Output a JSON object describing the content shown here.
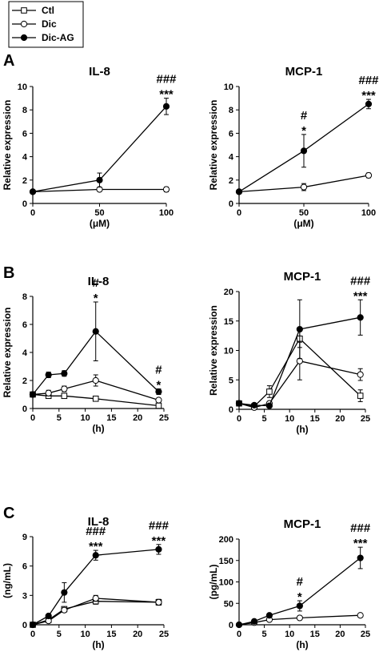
{
  "legend": {
    "items": [
      {
        "label": "Ctl",
        "marker": "open-square"
      },
      {
        "label": "Dic",
        "marker": "open-circle"
      },
      {
        "label": "Dic-AG",
        "marker": "filled-circle"
      }
    ]
  },
  "panel_labels": [
    "A",
    "B",
    "C"
  ],
  "chart_data": [
    {
      "type": "line",
      "panel": "A",
      "title": "IL-8",
      "xlabel": "(μM)",
      "ylabel": "Relative expression",
      "xlim": [
        0,
        100
      ],
      "ylim": [
        0,
        10
      ],
      "xticks": [
        0,
        50,
        100
      ],
      "yticks": [
        0,
        2,
        4,
        6,
        8,
        10
      ],
      "series": [
        {
          "name": "Dic",
          "marker": "open-circle",
          "x": [
            0,
            50,
            100
          ],
          "y": [
            1.0,
            1.2,
            1.2
          ],
          "err": [
            0,
            0.15,
            0.2
          ]
        },
        {
          "name": "Dic-AG",
          "marker": "filled-circle",
          "x": [
            0,
            50,
            100
          ],
          "y": [
            1.0,
            2.0,
            8.3
          ],
          "err": [
            0,
            0.6,
            0.7
          ]
        }
      ],
      "annotations": [
        {
          "x": 100,
          "lines": [
            "###",
            "***"
          ]
        }
      ]
    },
    {
      "type": "line",
      "panel": "A",
      "title": "MCP-1",
      "xlabel": "(μM)",
      "ylabel": "Relative expression",
      "xlim": [
        0,
        100
      ],
      "ylim": [
        0,
        10
      ],
      "xticks": [
        0,
        50,
        100
      ],
      "yticks": [
        0,
        2,
        4,
        6,
        8,
        10
      ],
      "series": [
        {
          "name": "Dic",
          "marker": "open-circle",
          "x": [
            0,
            50,
            100
          ],
          "y": [
            1.0,
            1.4,
            2.4
          ],
          "err": [
            0,
            0.3,
            0.2
          ]
        },
        {
          "name": "Dic-AG",
          "marker": "filled-circle",
          "x": [
            0,
            50,
            100
          ],
          "y": [
            1.0,
            4.5,
            8.5
          ],
          "err": [
            0,
            1.4,
            0.4
          ]
        }
      ],
      "annotations": [
        {
          "x": 50,
          "lines": [
            "#",
            "*"
          ]
        },
        {
          "x": 100,
          "lines": [
            "###",
            "***"
          ]
        }
      ]
    },
    {
      "type": "line",
      "panel": "B",
      "title": "IL-8",
      "xlabel": "(h)",
      "ylabel": "Relative expression",
      "xlim": [
        0,
        25
      ],
      "ylim": [
        0,
        8
      ],
      "xticks": [
        0,
        5,
        10,
        15,
        20,
        25
      ],
      "yticks": [
        0,
        2,
        4,
        6,
        8
      ],
      "series": [
        {
          "name": "Ctl",
          "marker": "open-square",
          "x": [
            0,
            3,
            6,
            12,
            24
          ],
          "y": [
            1.0,
            0.9,
            0.9,
            0.7,
            0.2
          ],
          "err": [
            0,
            0.1,
            0.1,
            0.1,
            0.1
          ]
        },
        {
          "name": "Dic",
          "marker": "open-circle",
          "x": [
            0,
            3,
            6,
            12,
            24
          ],
          "y": [
            1.0,
            1.1,
            1.4,
            2.0,
            0.6
          ],
          "err": [
            0,
            0.2,
            0.2,
            0.4,
            0.1
          ]
        },
        {
          "name": "Dic-AG",
          "marker": "filled-circle",
          "x": [
            0,
            3,
            6,
            12,
            24
          ],
          "y": [
            1.0,
            2.4,
            2.5,
            5.5,
            1.2
          ],
          "err": [
            0,
            0.2,
            0.2,
            2.1,
            0.2
          ]
        }
      ],
      "annotations": [
        {
          "x": 12,
          "lines": [
            "#",
            "*"
          ]
        },
        {
          "x": 24,
          "lines": [
            "#",
            "*"
          ]
        }
      ]
    },
    {
      "type": "line",
      "panel": "B",
      "title": "MCP-1",
      "xlabel": "(h)",
      "ylabel": "Relative expression",
      "xlim": [
        0,
        25
      ],
      "ylim": [
        0,
        20
      ],
      "xticks": [
        0,
        5,
        10,
        15,
        20,
        25
      ],
      "yticks": [
        0,
        5,
        10,
        15,
        20
      ],
      "series": [
        {
          "name": "Ctl",
          "marker": "open-square",
          "x": [
            0,
            3,
            6,
            12,
            24
          ],
          "y": [
            1.0,
            0.5,
            3.0,
            12.0,
            2.3
          ],
          "err": [
            0,
            0.2,
            1.0,
            1.5,
            1.0
          ]
        },
        {
          "name": "Dic",
          "marker": "open-circle",
          "x": [
            0,
            3,
            6,
            12,
            24
          ],
          "y": [
            1.0,
            0.3,
            1.0,
            8.2,
            5.9
          ],
          "err": [
            0,
            0.2,
            0.3,
            3.2,
            1.0
          ]
        },
        {
          "name": "Dic-AG",
          "marker": "filled-circle",
          "x": [
            0,
            3,
            6,
            12,
            24
          ],
          "y": [
            1.0,
            0.7,
            0.6,
            13.6,
            15.6
          ],
          "err": [
            0,
            0.2,
            0.2,
            5.0,
            3.0
          ]
        }
      ],
      "annotations": [
        {
          "x": 24,
          "lines": [
            "###",
            "***"
          ]
        }
      ]
    },
    {
      "type": "line",
      "panel": "C",
      "title": "IL-8",
      "xlabel": "(h)",
      "ylabel": "(ng/mL)",
      "xlim": [
        0,
        25
      ],
      "ylim": [
        0,
        9
      ],
      "xticks": [
        0,
        5,
        10,
        15,
        20,
        25
      ],
      "yticks": [
        0,
        3,
        6,
        9
      ],
      "series": [
        {
          "name": "Ctl",
          "marker": "open-square",
          "x": [
            0,
            3,
            6,
            12,
            24
          ],
          "y": [
            0.0,
            0.5,
            1.6,
            2.4,
            2.3
          ],
          "err": [
            0,
            0.1,
            0.2,
            0.3,
            0.3
          ]
        },
        {
          "name": "Dic",
          "marker": "open-circle",
          "x": [
            0,
            3,
            6,
            12,
            24
          ],
          "y": [
            0.0,
            0.4,
            1.5,
            2.7,
            2.3
          ],
          "err": [
            0,
            0.1,
            0.2,
            0.3,
            0.2
          ]
        },
        {
          "name": "Dic-AG",
          "marker": "filled-circle",
          "x": [
            0,
            3,
            6,
            12,
            24
          ],
          "y": [
            0.0,
            0.9,
            3.3,
            7.1,
            7.7
          ],
          "err": [
            0,
            0.1,
            1.0,
            0.5,
            0.5
          ]
        }
      ],
      "annotations": [
        {
          "x": 12,
          "lines": [
            "###",
            "***"
          ]
        },
        {
          "x": 24,
          "lines": [
            "###",
            "***"
          ]
        }
      ]
    },
    {
      "type": "line",
      "panel": "C",
      "title": "MCP-1",
      "xlabel": "(h)",
      "ylabel": "(pg/mL)",
      "xlim": [
        0,
        25
      ],
      "ylim": [
        0,
        200
      ],
      "xticks": [
        0,
        5,
        10,
        15,
        20,
        25
      ],
      "yticks": [
        0,
        50,
        100,
        150,
        200
      ],
      "series": [
        {
          "name": "Dic",
          "marker": "open-circle",
          "x": [
            0,
            3,
            6,
            12,
            24
          ],
          "y": [
            0,
            5,
            12,
            16,
            22
          ],
          "err": [
            0,
            1,
            2,
            2,
            3
          ]
        },
        {
          "name": "Dic-AG",
          "marker": "filled-circle",
          "x": [
            0,
            3,
            6,
            12,
            24
          ],
          "y": [
            0,
            8,
            22,
            44,
            156
          ],
          "err": [
            0,
            2,
            4,
            12,
            25
          ]
        }
      ],
      "annotations": [
        {
          "x": 12,
          "lines": [
            "#",
            "*"
          ]
        },
        {
          "x": 24,
          "lines": [
            "###",
            "***"
          ]
        }
      ]
    }
  ]
}
